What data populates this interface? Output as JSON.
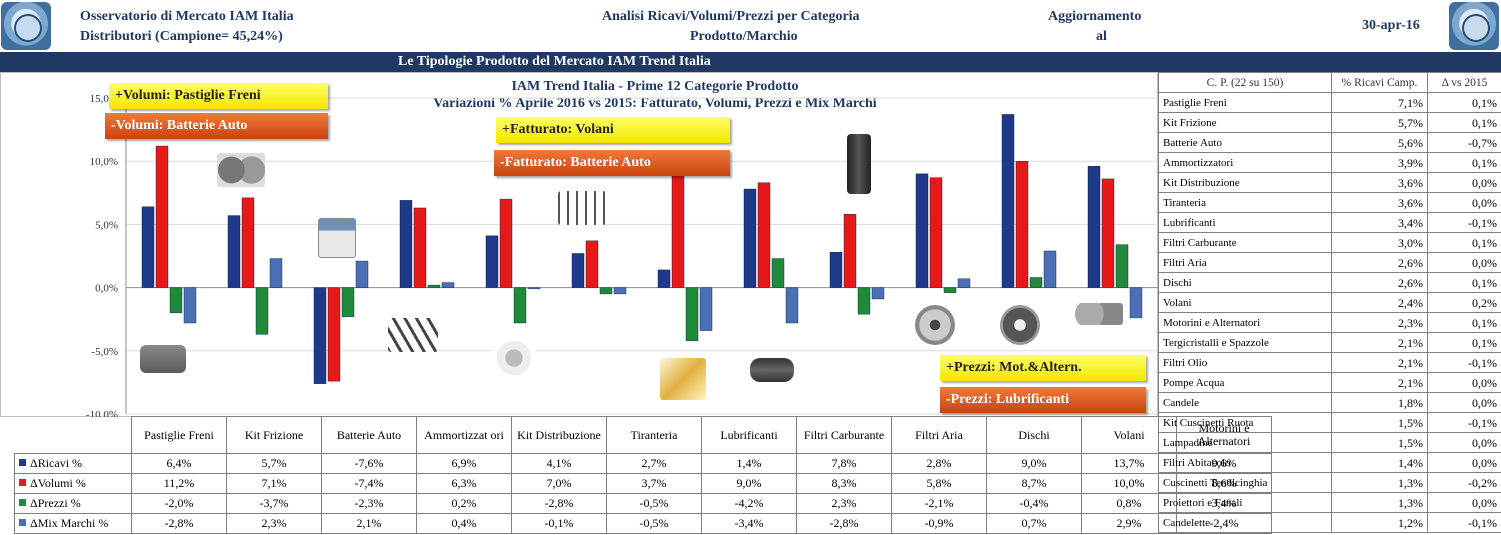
{
  "header": {
    "left_line1": "Osservatorio di Mercato IAM Italia",
    "left_line2": "Distributori (Campione= 45,24%)",
    "center_line1": "Analisi Ricavi/Volumi/Prezzi  per Categoria",
    "center_line2": "Prodotto/Marchio",
    "update_line1": "Aggiornamento",
    "update_line2": "al",
    "date": "30-apr-16"
  },
  "banner": "Le Tipologie Prodotto del Mercato IAM Trend Italia",
  "callouts": {
    "volumi_plus": "+Volumi: Pastiglie Freni",
    "volumi_minus": "-Volumi: Batterie Auto",
    "fatturato_plus": "+Fatturato: Volani",
    "fatturato_minus": "-Fatturato: Batterie Auto",
    "prezzi_plus": "+Prezzi: Mot.&Altern.",
    "prezzi_minus": "-Prezzi: Lubrificanti"
  },
  "colors": {
    "ricavi": "#1f3a8a",
    "volumi": "#e61919",
    "prezzi": "#1f8a3a",
    "mix": "#4a6fb5",
    "navy": "#1f3864"
  },
  "chart_data": {
    "type": "bar",
    "title": "IAM Trend Italia - Prime 12 Categorie Prodotto",
    "subtitle": "Variazioni % Aprile 2016 vs 2015: Fatturato, Volumi, Prezzi e Mix Marchi",
    "categories": [
      "Pastiglie Freni",
      "Kit Frizione",
      "Batterie Auto",
      "Ammortizzatori",
      "Kit Distribuzione",
      "Tiranteria",
      "Lubrificanti",
      "Filtri Carburante",
      "Filtri Aria",
      "Dischi",
      "Volani",
      "Motorini e Alternatori"
    ],
    "category_labels": [
      "Pastiglie Freni",
      "Kit Frizione",
      "Batterie Auto",
      "Ammortizzat ori",
      "Kit Distribuzione",
      "Tiranteria",
      "Lubrificanti",
      "Filtri Carburante",
      "Filtri Aria",
      "Dischi",
      "Volani",
      "Motorini e Alternatori"
    ],
    "series": [
      {
        "name": "ΔRicavi %",
        "values": [
          6.4,
          5.7,
          -7.6,
          6.9,
          4.1,
          2.7,
          1.4,
          7.8,
          2.8,
          9.0,
          13.7,
          9.6
        ],
        "labels": [
          "6,4%",
          "5,7%",
          "-7,6%",
          "6,9%",
          "4,1%",
          "2,7%",
          "1,4%",
          "7,8%",
          "2,8%",
          "9,0%",
          "13,7%",
          "9,6%"
        ]
      },
      {
        "name": "ΔVolumi %",
        "values": [
          11.2,
          7.1,
          -7.4,
          6.3,
          7.0,
          3.7,
          9.0,
          8.3,
          5.8,
          8.7,
          10.0,
          8.6
        ],
        "labels": [
          "11,2%",
          "7,1%",
          "-7,4%",
          "6,3%",
          "7,0%",
          "3,7%",
          "9,0%",
          "8,3%",
          "5,8%",
          "8,7%",
          "10,0%",
          "8,6%"
        ]
      },
      {
        "name": "ΔPrezzi %",
        "values": [
          -2.0,
          -3.7,
          -2.3,
          0.2,
          -2.8,
          -0.5,
          -4.2,
          2.3,
          -2.1,
          -0.4,
          0.8,
          3.4
        ],
        "labels": [
          "-2,0%",
          "-3,7%",
          "-2,3%",
          "0,2%",
          "-2,8%",
          "-0,5%",
          "-4,2%",
          "2,3%",
          "-2,1%",
          "-0,4%",
          "0,8%",
          "3,4%"
        ]
      },
      {
        "name": "ΔMix Marchi %",
        "values": [
          -2.8,
          2.3,
          2.1,
          0.4,
          -0.1,
          -0.5,
          -3.4,
          -2.8,
          -0.9,
          0.7,
          2.9,
          -2.4
        ],
        "labels": [
          "-2,8%",
          "2,3%",
          "2,1%",
          "0,4%",
          "-0,1%",
          "-0,5%",
          "-3,4%",
          "-2,8%",
          "-0,9%",
          "0,7%",
          "2,9%",
          "-2,4%"
        ]
      }
    ],
    "ylim": [
      -10,
      15
    ],
    "yticks": [
      "15,0%",
      "10,0%",
      "5,0%",
      "0,0%",
      "-5,0%",
      "-10,0%"
    ],
    "grid": true,
    "legend": "data-table"
  },
  "side_table": {
    "headers": [
      "C. P.  (22 su 150)",
      "% Ricavi Camp.",
      "Δ vs 2015"
    ],
    "rows": [
      [
        "Pastiglie Freni",
        "7,1%",
        "0,1%"
      ],
      [
        "Kit Frizione",
        "5,7%",
        "0,1%"
      ],
      [
        "Batterie Auto",
        "5,6%",
        "-0,7%"
      ],
      [
        "Ammortizzatori",
        "3,9%",
        "0,1%"
      ],
      [
        "Kit Distribuzione",
        "3,6%",
        "0,0%"
      ],
      [
        "Tiranteria",
        "3,6%",
        "0,0%"
      ],
      [
        "Lubrificanti",
        "3,4%",
        "-0,1%"
      ],
      [
        "Filtri Carburante",
        "3,0%",
        "0,1%"
      ],
      [
        "Filtri Aria",
        "2,6%",
        "0,0%"
      ],
      [
        "Dischi",
        "2,6%",
        "0,1%"
      ],
      [
        "Volani",
        "2,4%",
        "0,2%"
      ],
      [
        "Motorini e Alternatori",
        "2,3%",
        "0,1%"
      ],
      [
        "Tergicristalli e Spazzole",
        "2,1%",
        "0,1%"
      ],
      [
        "Filtri Olio",
        "2,1%",
        "-0,1%"
      ],
      [
        "Pompe Acqua",
        "2,1%",
        "0,0%"
      ],
      [
        "Candele",
        "1,8%",
        "0,0%"
      ],
      [
        "Kit Cuscinetti Ruota",
        "1,5%",
        "-0,1%"
      ],
      [
        "Lampadine",
        "1,5%",
        "0,0%"
      ],
      [
        "Filtri Abitacolo",
        "1,4%",
        "0,0%"
      ],
      [
        "Cuscinetti Tendicinghia",
        "1,3%",
        "-0,2%"
      ],
      [
        "Proiettori e Fanali",
        "1,3%",
        "0,0%"
      ],
      [
        "Candelette",
        "1,2%",
        "-0,1%"
      ]
    ]
  }
}
